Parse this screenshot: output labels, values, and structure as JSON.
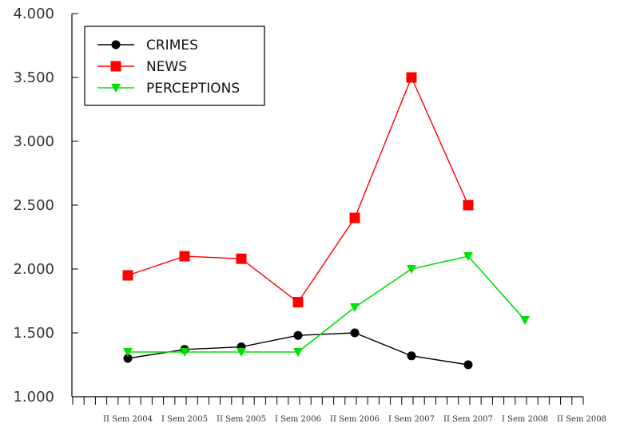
{
  "chart_data": {
    "type": "line",
    "title": "",
    "xlabel": "",
    "ylabel": "",
    "ylim": [
      1000,
      4000
    ],
    "y_ticks": [
      "1.000",
      "1.500",
      "2.000",
      "2.500",
      "3.000",
      "3.500",
      "4.000"
    ],
    "y_tick_values": [
      1000,
      1500,
      2000,
      2500,
      3000,
      3500,
      4000
    ],
    "categories": [
      "II Sem 2004",
      "I Sem 2005",
      "II Sem 2005",
      "I Sem 2006",
      "II Sem 2006",
      "I Sem 2007",
      "II Sem 2007",
      "I Sem 2008",
      "II Sem 2008"
    ],
    "grid": false,
    "legend_position": "top-left",
    "series": [
      {
        "name": "CRIMES",
        "color": "#000000",
        "marker": "circle",
        "values": [
          1300,
          1370,
          1390,
          1480,
          1500,
          1320,
          1250,
          null,
          null
        ]
      },
      {
        "name": "NEWS",
        "color": "#ff0000",
        "marker": "square",
        "values": [
          1950,
          2100,
          2080,
          1740,
          2400,
          3500,
          2500,
          null,
          null
        ]
      },
      {
        "name": "PERCEPTIONS",
        "color": "#00e000",
        "marker": "triangle-down",
        "values": [
          1350,
          1350,
          1350,
          1350,
          1700,
          2000,
          2100,
          1600,
          null
        ]
      }
    ]
  }
}
